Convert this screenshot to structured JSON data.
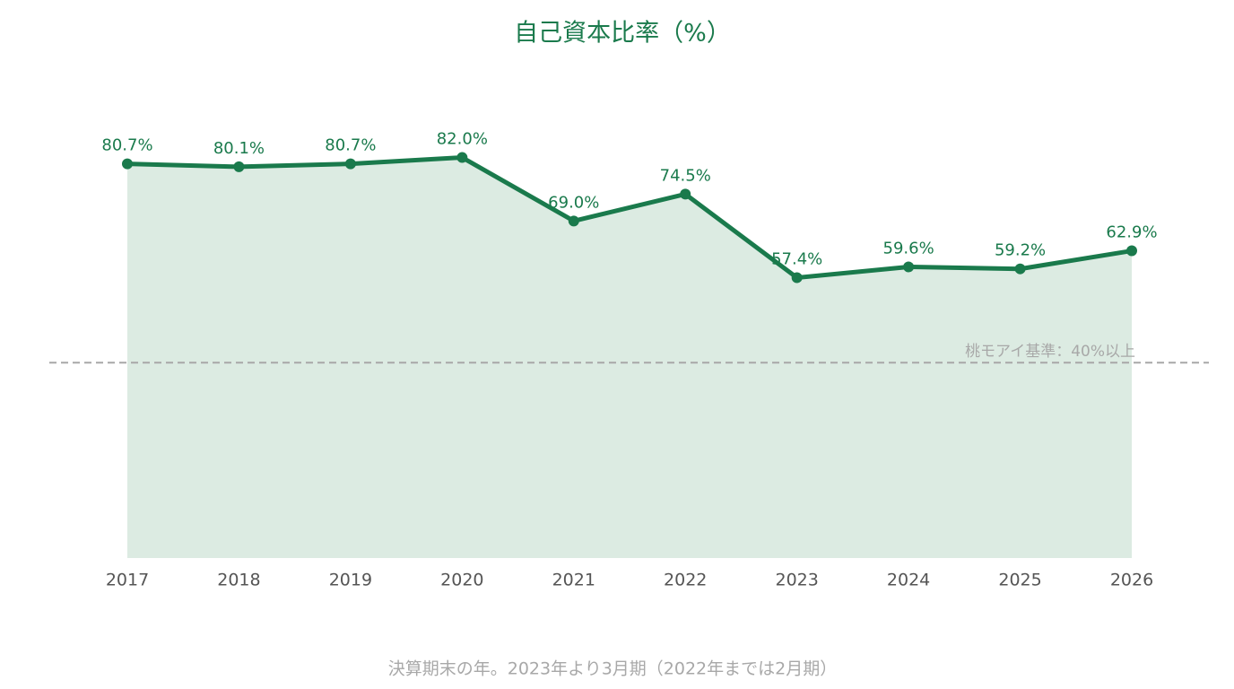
{
  "chart_data": {
    "type": "line",
    "title": "自己資本比率（%）",
    "categories": [
      "2017",
      "2018",
      "2019",
      "2020",
      "2021",
      "2022",
      "2023",
      "2024",
      "2025",
      "2026"
    ],
    "values": [
      80.7,
      80.1,
      80.7,
      82.0,
      69.0,
      74.5,
      57.4,
      59.6,
      59.2,
      62.9
    ],
    "value_labels": [
      "80.7%",
      "80.1%",
      "80.7%",
      "82.0%",
      "69.0%",
      "74.5%",
      "57.4%",
      "59.6%",
      "59.2%",
      "62.9%"
    ],
    "color": "#1a7a4c",
    "area_color": "#dcebe2",
    "ylim": [
      0,
      90
    ],
    "reference_line": {
      "value": 40,
      "label": "桃モアイ基準：40%以上"
    },
    "footnote": "決算期末の年。2023年より3月期（2022年までは2月期）"
  }
}
